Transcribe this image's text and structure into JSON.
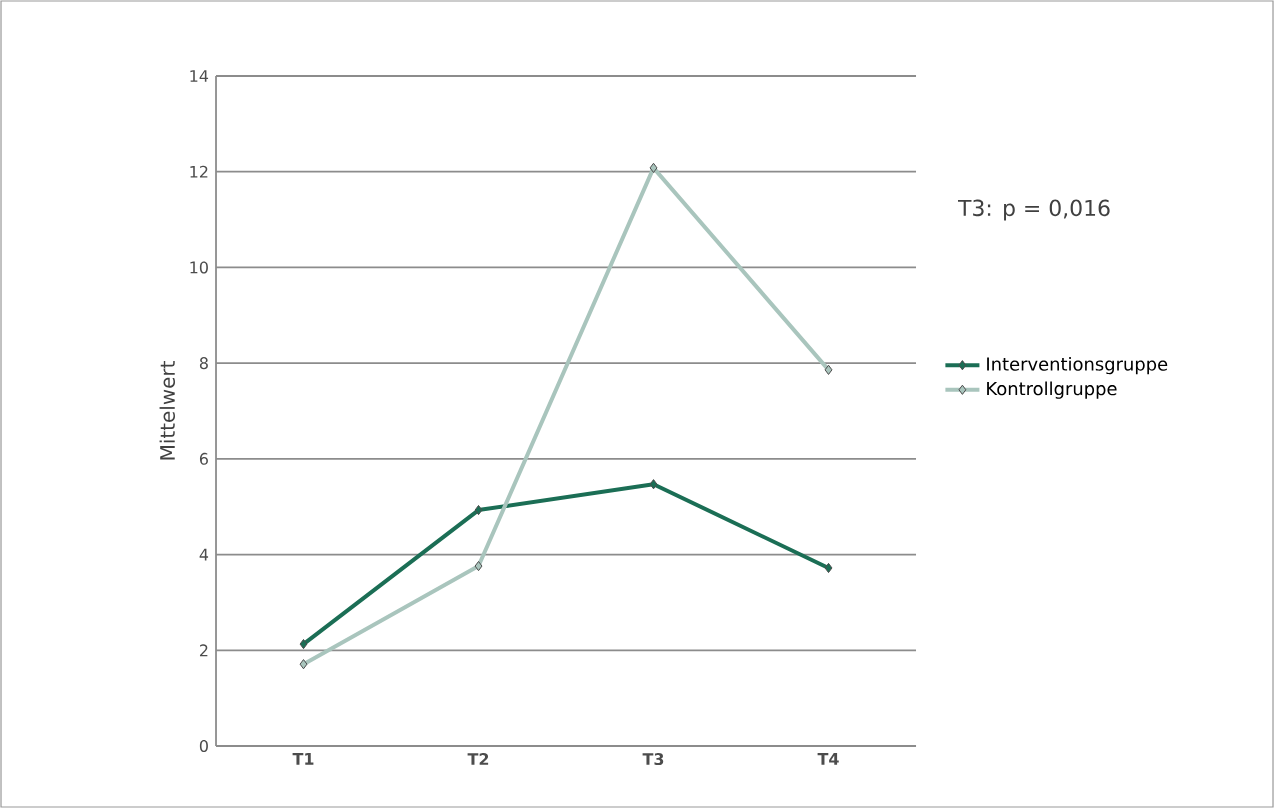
{
  "chart_data": {
    "type": "line",
    "ylabel": "Mittelwert",
    "categories": [
      "T1",
      "T2",
      "T3",
      "T4"
    ],
    "series": [
      {
        "name": "Interventionsgruppe",
        "color": "#1b6e55",
        "values": [
          2.13,
          4.93,
          5.47,
          3.72
        ]
      },
      {
        "name": "Kontrollgruppe",
        "color": "#a9c5bd",
        "values": [
          1.71,
          3.76,
          12.08,
          7.86
        ]
      }
    ],
    "ylim": [
      0,
      14
    ],
    "yticks": [
      0,
      2,
      4,
      6,
      8,
      10,
      12,
      14
    ],
    "grid": "y",
    "legend": "right",
    "marker": "diamond",
    "line_style": "solid",
    "annotations": [
      "T3: p = 0,016"
    ]
  }
}
